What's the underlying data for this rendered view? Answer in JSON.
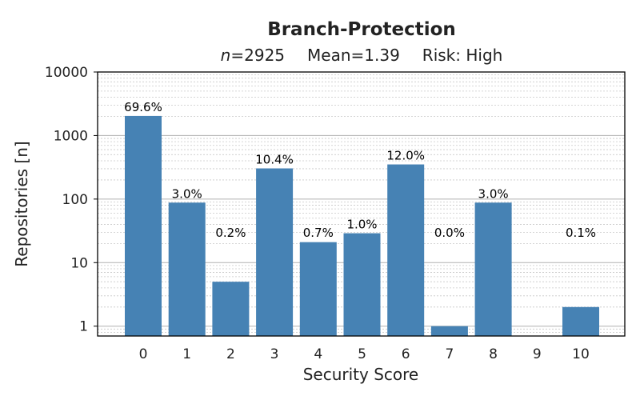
{
  "chart_data": {
    "type": "bar",
    "title": "Branch-Protection",
    "subtitle": {
      "n_label": "n",
      "n_value": "=2925",
      "mean": "Mean=1.39",
      "risk": "Risk: High"
    },
    "xlabel": "Security Score",
    "ylabel": "Repositories [n]",
    "yscale": "log",
    "ylim": [
      0.7,
      10000
    ],
    "yticks": [
      1,
      10,
      100,
      1000,
      10000
    ],
    "ytick_labels": [
      "1",
      "10",
      "100",
      "1000",
      "10000"
    ],
    "categories": [
      "0",
      "1",
      "2",
      "3",
      "4",
      "5",
      "6",
      "7",
      "8",
      "9",
      "10"
    ],
    "values": [
      2035,
      88,
      5,
      304,
      21,
      29,
      351,
      1,
      88,
      0,
      2
    ],
    "data_labels": [
      "69.6%",
      "3.0%",
      "0.2%",
      "10.4%",
      "0.7%",
      "1.0%",
      "12.0%",
      "0.0%",
      "3.0%",
      "",
      "0.1%"
    ],
    "bar_color": "#4682b4",
    "grid": true,
    "legend": "none"
  }
}
